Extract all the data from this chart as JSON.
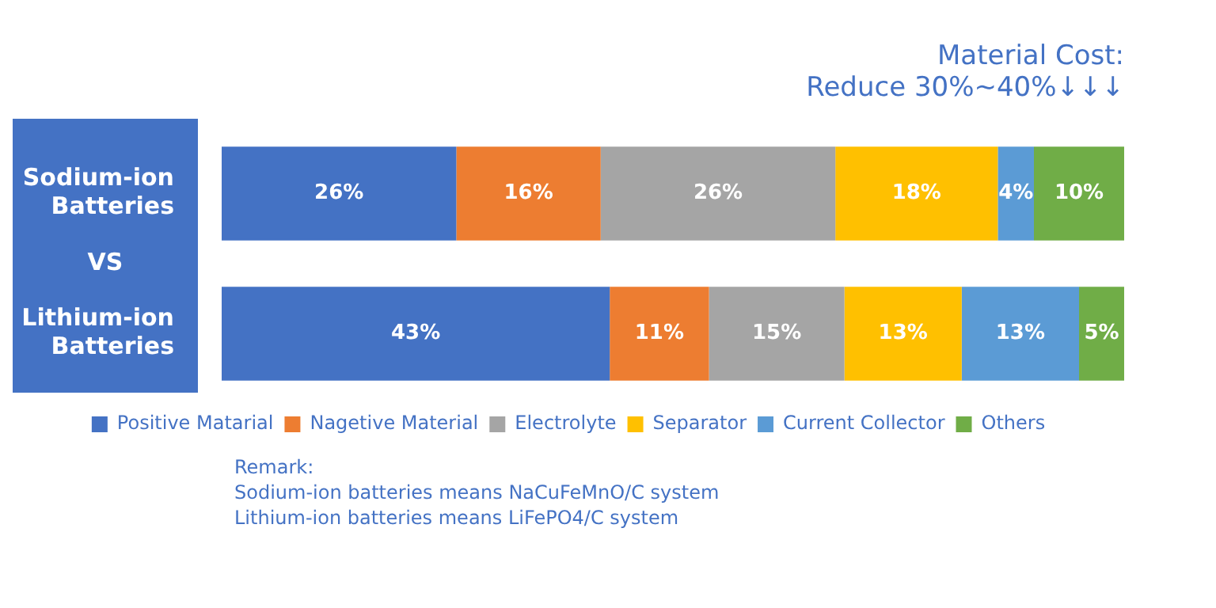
{
  "chart_data": {
    "type": "bar",
    "orientation": "horizontal",
    "stacked": true,
    "legend": "bottom",
    "tick_labels": "y",
    "categories": [
      "Sodium-ion Batteries",
      "Lithium-ion Batteries"
    ],
    "series": [
      {
        "name": "Positive Matarial",
        "color": "#4472c4",
        "values": [
          26,
          43
        ],
        "value_labels": [
          "26%",
          "43%"
        ]
      },
      {
        "name": "Nagetive Material",
        "color": "#ed7d31",
        "values": [
          16,
          11
        ],
        "value_labels": [
          "16%",
          "11%"
        ]
      },
      {
        "name": "Electrolyte",
        "color": "#a5a5a5",
        "values": [
          26,
          15
        ],
        "value_labels": [
          "26%",
          "15%"
        ]
      },
      {
        "name": "Separator",
        "color": "#ffc000",
        "values": [
          18,
          13
        ],
        "value_labels": [
          "18%",
          "13%"
        ]
      },
      {
        "name": "Current Collector",
        "color": "#5b9bd5",
        "values": [
          4,
          13
        ],
        "value_labels": [
          "4%",
          "13%"
        ]
      },
      {
        "name": "Others",
        "color": "#70ad47",
        "values": [
          10,
          5
        ],
        "value_labels": [
          "10%",
          "5%"
        ]
      }
    ],
    "annotations": [
      "VS",
      "Material Cost:",
      "Reduce 30%~40%↓↓↓",
      "Remark:",
      "Sodium-ion batteries means NaCuFeMnO/C system",
      "Lithium-ion batteries means LiFePO4/C system"
    ]
  }
}
